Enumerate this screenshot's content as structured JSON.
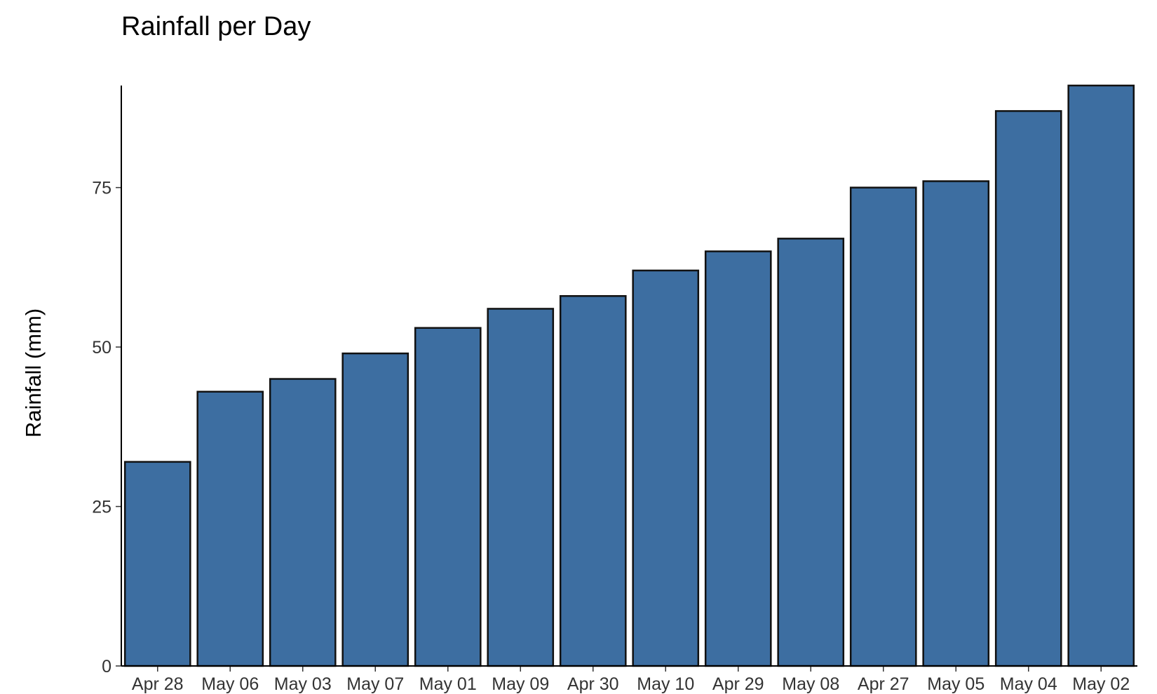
{
  "chart_data": {
    "type": "bar",
    "title": "Rainfall per Day",
    "xlabel": "",
    "ylabel": "Rainfall (mm)",
    "categories": [
      "Apr 28",
      "May 06",
      "May 03",
      "May 07",
      "May 01",
      "May 09",
      "Apr 30",
      "May 10",
      "Apr 29",
      "May 08",
      "Apr 27",
      "May 05",
      "May 04",
      "May 02"
    ],
    "values": [
      32,
      43,
      45,
      49,
      53,
      56,
      58,
      62,
      65,
      67,
      75,
      76,
      87,
      91
    ],
    "ylim": [
      0,
      91
    ],
    "yticks": [
      0,
      25,
      50,
      75
    ],
    "bar_color": "#3d6ea1",
    "bar_border_color": "#111111",
    "grid": false,
    "legend": "none"
  }
}
